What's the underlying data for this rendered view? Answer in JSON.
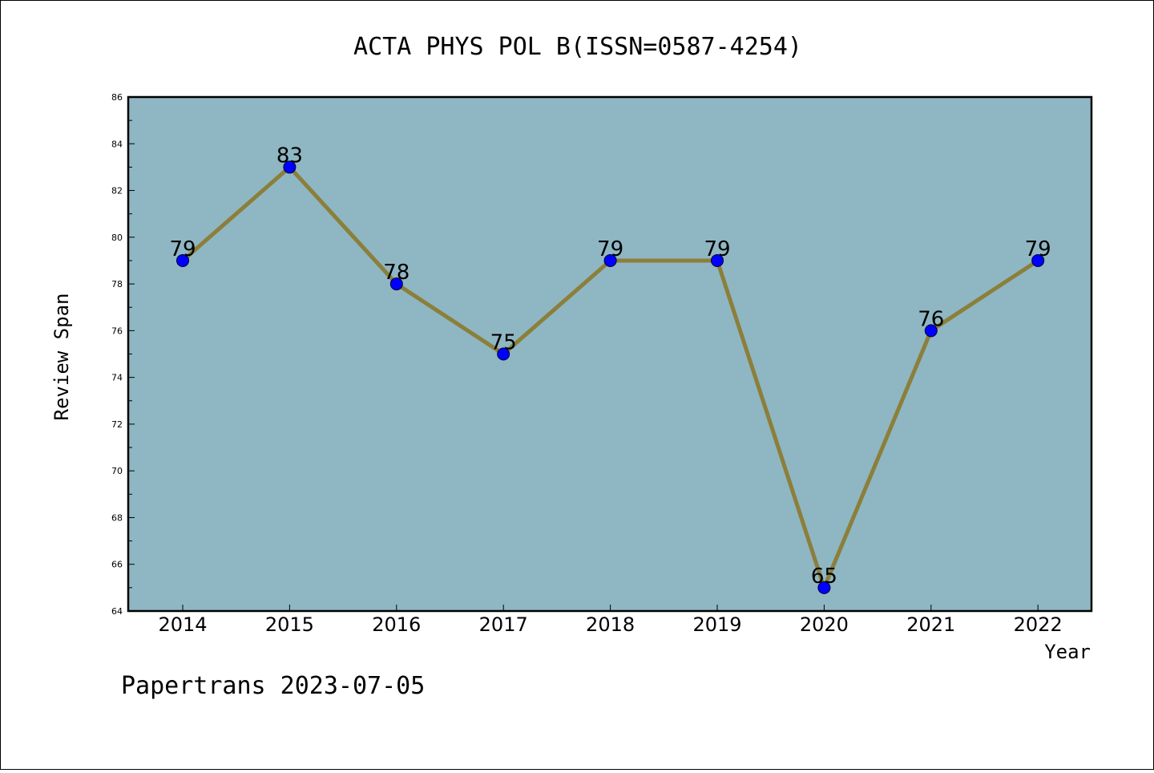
{
  "chart_data": {
    "type": "line",
    "title": "ACTA PHYS POL B(ISSN=0587-4254)",
    "xlabel": "Year",
    "ylabel": "Review Span",
    "categories": [
      "2014",
      "2015",
      "2016",
      "2017",
      "2018",
      "2019",
      "2020",
      "2021",
      "2022"
    ],
    "values": [
      79,
      83,
      78,
      75,
      79,
      79,
      65,
      76,
      79
    ],
    "ylim": [
      64,
      86
    ],
    "yticks": [
      "64",
      "66",
      "68",
      "70",
      "72",
      "74",
      "76",
      "78",
      "80",
      "82",
      "84",
      "86"
    ],
    "grid": false,
    "colors": {
      "plot_background": "#8fb6c3",
      "line": "#8b7f3a",
      "marker": "#0000ff"
    }
  },
  "footer": "Papertrans 2023-07-05"
}
